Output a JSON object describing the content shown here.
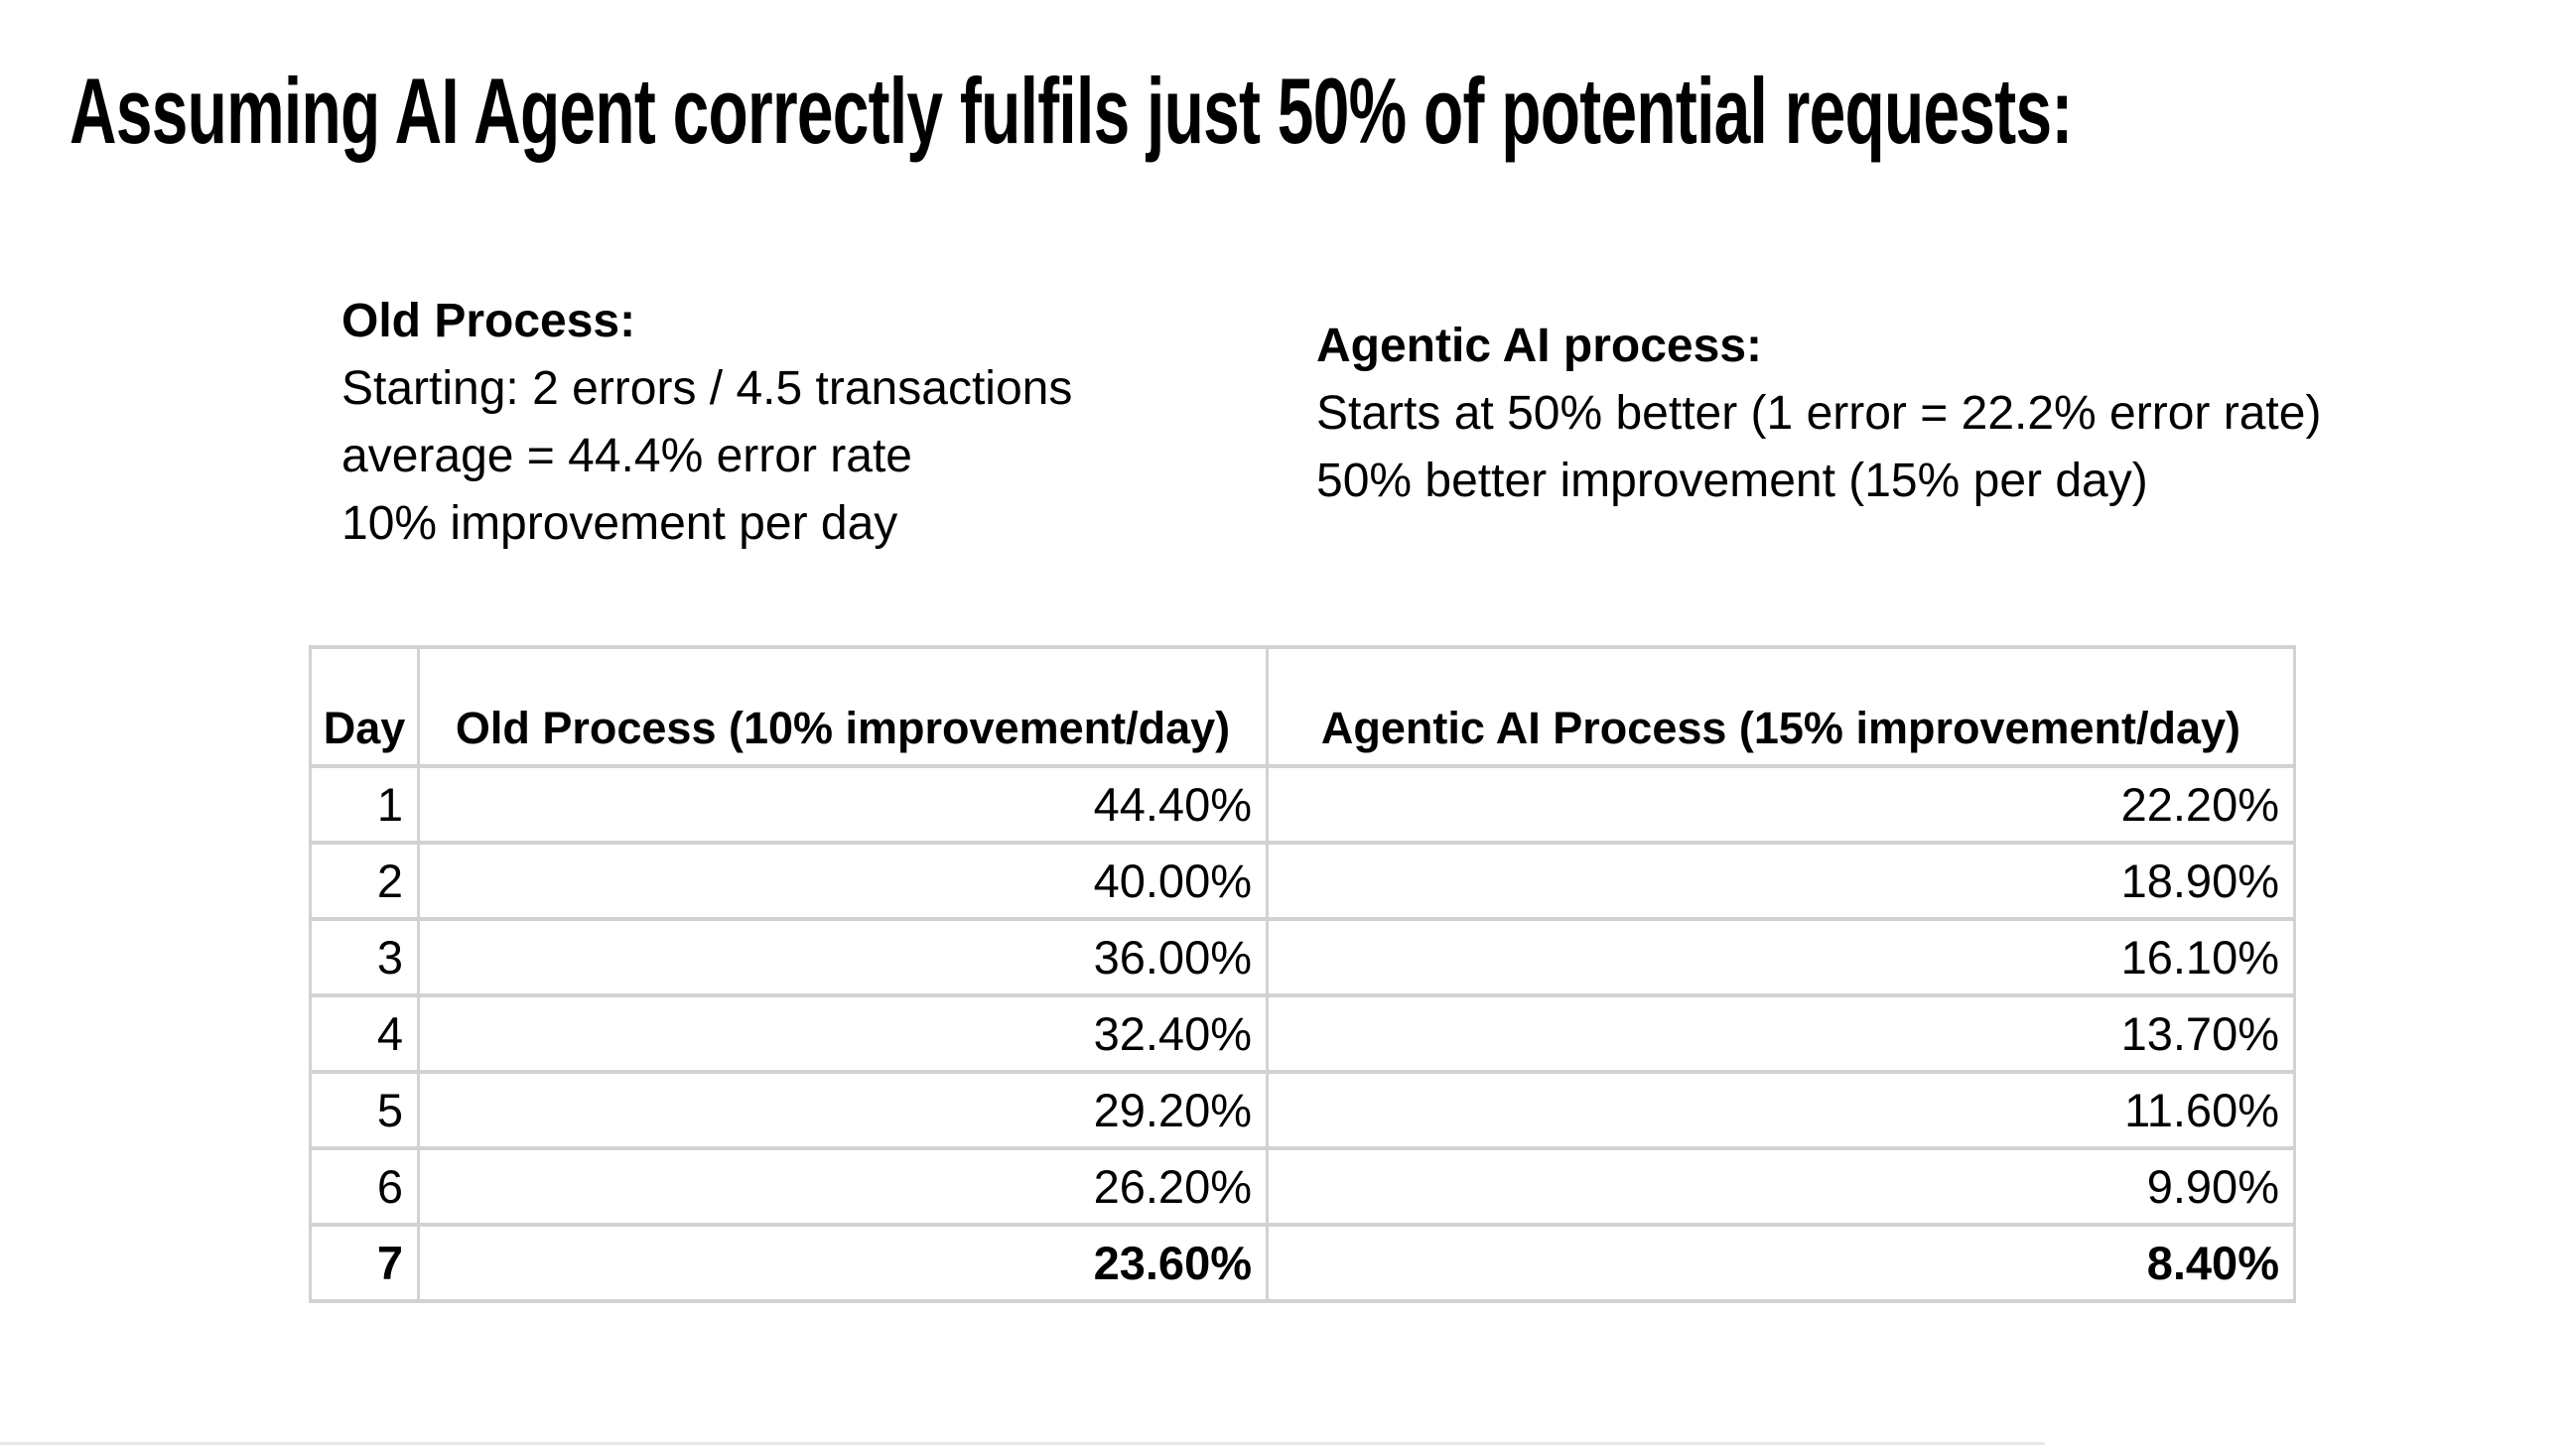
{
  "title": "Assuming AI Agent correctly fulfils just 50% of potential requests:",
  "old_process": {
    "heading": "Old Process:",
    "line1": "Starting: 2 errors / 4.5 transactions",
    "line2": "average = 44.4% error rate",
    "line3": "10% improvement per day"
  },
  "agentic_process": {
    "heading": "Agentic AI process:",
    "line1": "Starts at 50% better (1 error = 22.2% error rate)",
    "line2": "50% better improvement (15% per day)"
  },
  "table": {
    "columns": [
      "Day",
      "Old Process (10% improvement/day)",
      "Agentic AI Process (15% improvement/day)"
    ],
    "rows": [
      {
        "day": "1",
        "old": "44.40%",
        "agentic": "22.20%",
        "bold": false
      },
      {
        "day": "2",
        "old": "40.00%",
        "agentic": "18.90%",
        "bold": false
      },
      {
        "day": "3",
        "old": "36.00%",
        "agentic": "16.10%",
        "bold": false
      },
      {
        "day": "4",
        "old": "32.40%",
        "agentic": "13.70%",
        "bold": false
      },
      {
        "day": "5",
        "old": "29.20%",
        "agentic": "11.60%",
        "bold": false
      },
      {
        "day": "6",
        "old": "26.20%",
        "agentic": "9.90%",
        "bold": false
      },
      {
        "day": "7",
        "old": "23.60%",
        "agentic": "8.40%",
        "bold": true
      }
    ]
  },
  "colors": {
    "text": "#000000",
    "gridline": "#d2d2d2",
    "background": "#ffffff"
  }
}
